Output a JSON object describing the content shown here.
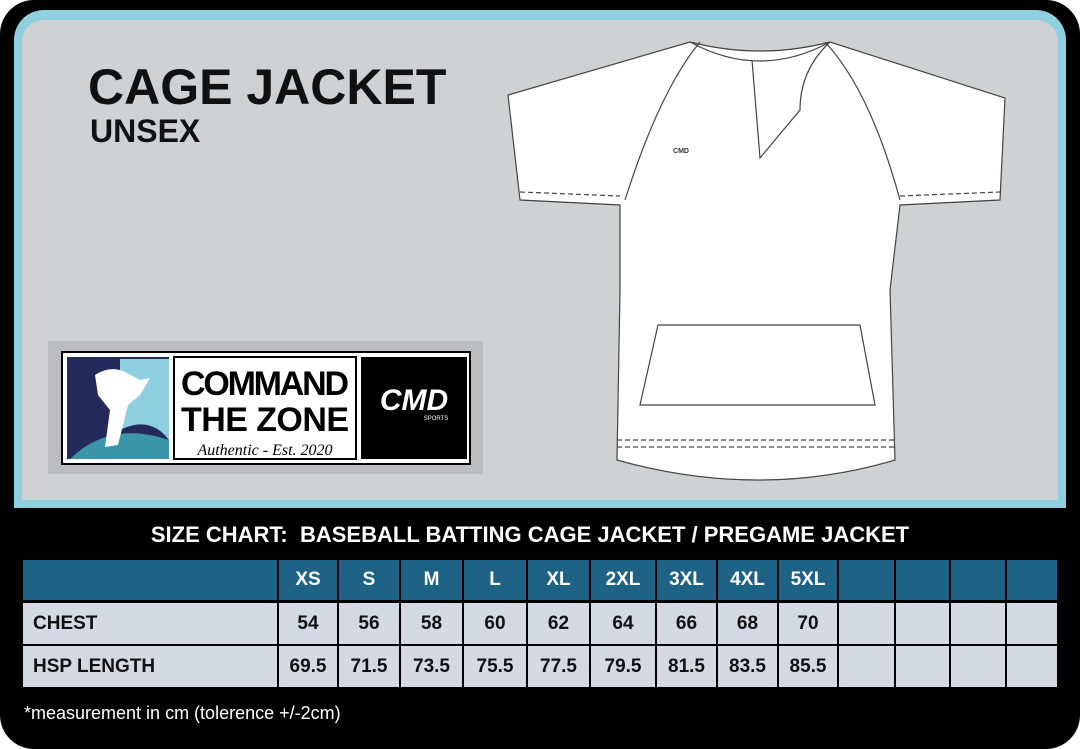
{
  "header": {
    "title": "CAGE JACKET",
    "subtitle": "UNSEX"
  },
  "logo": {
    "line1": "COMMAND",
    "line2": "THE ZONE",
    "tagline": "Authentic - Est. 2020",
    "brand": "CMD",
    "brand_sub": "SPORTS",
    "jacket_mark": "CMD"
  },
  "table": {
    "title": "SIZE CHART:  BASEBALL BATTING CAGE JACKET / PREGAME JACKET",
    "columns": [
      "XS",
      "S",
      "M",
      "L",
      "XL",
      "2XL",
      "3XL",
      "4XL",
      "5XL"
    ],
    "rows": [
      [
        "CHEST",
        "54",
        "56",
        "58",
        "60",
        "62",
        "64",
        "66",
        "68",
        "70"
      ],
      [
        "HSP LENGTH",
        "69.5",
        "71.5",
        "73.5",
        "75.5",
        "77.5",
        "79.5",
        "81.5",
        "83.5",
        "85.5"
      ]
    ]
  },
  "footnote": "*measurement in cm (tolerence +/-2cm)"
}
